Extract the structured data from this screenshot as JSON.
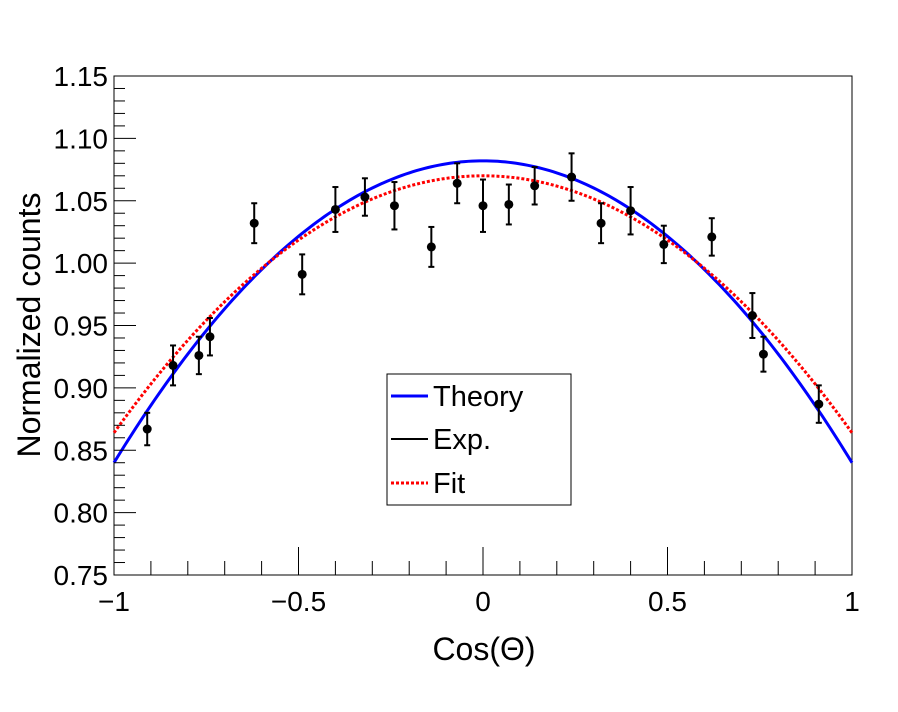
{
  "chart_data": {
    "type": "scatter",
    "title": "",
    "xlabel": "Cos(Θ)",
    "ylabel": "Normalized counts",
    "xlim": [
      -1,
      1
    ],
    "ylim": [
      0.75,
      1.15
    ],
    "x_ticks": [
      -1,
      -0.5,
      0,
      0.5,
      1
    ],
    "x_tick_labels": [
      "−1",
      "−0.5",
      "0",
      "0.5",
      "1"
    ],
    "y_ticks": [
      0.75,
      0.8,
      0.85,
      0.9,
      0.95,
      1.0,
      1.05,
      1.1,
      1.15
    ],
    "y_tick_labels": [
      "0.75",
      "0.80",
      "0.85",
      "0.90",
      "0.95",
      "1.00",
      "1.05",
      "1.10",
      "1.15"
    ],
    "grid": false,
    "legend_position": "center-bottom",
    "legend": [
      {
        "label": "Theory",
        "style": "solid",
        "color": "#0000ff"
      },
      {
        "label": "Exp.",
        "style": "solid",
        "color": "#000000"
      },
      {
        "label": "Fit",
        "style": "dotted",
        "color": "#ff0000"
      }
    ],
    "series": [
      {
        "name": "Exp.",
        "kind": "points_with_errors",
        "color": "#000000",
        "x": [
          -0.91,
          -0.84,
          -0.77,
          -0.74,
          -0.62,
          -0.49,
          -0.4,
          -0.32,
          -0.24,
          -0.14,
          -0.07,
          0.0,
          0.07,
          0.14,
          0.24,
          0.32,
          0.4,
          0.49,
          0.62,
          0.73,
          0.76,
          0.91
        ],
        "y": [
          0.867,
          0.918,
          0.926,
          0.941,
          1.032,
          0.991,
          1.043,
          1.053,
          1.046,
          1.013,
          1.064,
          1.046,
          1.047,
          1.062,
          1.069,
          1.032,
          1.042,
          1.015,
          1.021,
          0.958,
          0.927,
          0.887
        ],
        "yerr": [
          0.013,
          0.016,
          0.015,
          0.015,
          0.016,
          0.016,
          0.018,
          0.015,
          0.019,
          0.016,
          0.016,
          0.021,
          0.016,
          0.015,
          0.019,
          0.016,
          0.019,
          0.015,
          0.015,
          0.018,
          0.014,
          0.015
        ]
      },
      {
        "name": "Theory",
        "kind": "curve",
        "color": "#0000ff",
        "function": "1.082 - 0.242*x^2",
        "x_range": [
          -1,
          1
        ]
      },
      {
        "name": "Fit",
        "kind": "curve",
        "color": "#ff0000",
        "function": "1.070 - 0.206*x^2",
        "x_range": [
          -1,
          1
        ]
      }
    ]
  }
}
